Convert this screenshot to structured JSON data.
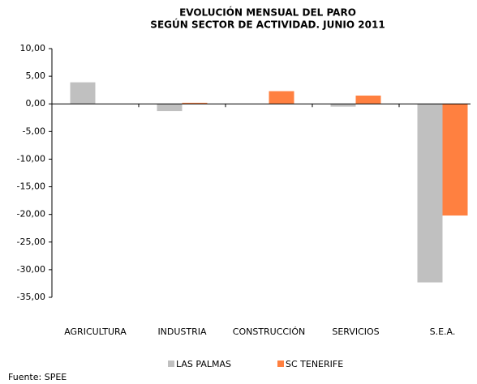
{
  "chart_data": {
    "type": "bar",
    "title": [
      "EVOLUCIÓN MENSUAL DEL PARO",
      "SEGÚN SECTOR DE ACTIVIDAD. JUNIO 2011"
    ],
    "categories": [
      "AGRICULTURA",
      "INDUSTRIA",
      "CONSTRUCCIÓN",
      "SERVICIOS",
      "S.E.A."
    ],
    "series": [
      {
        "name": "LAS PALMAS",
        "color": "#c0c0c0",
        "values": [
          3.9,
          -1.3,
          0,
          -0.5,
          -32.3
        ]
      },
      {
        "name": "SC TENERIFE",
        "color": "#ff8040",
        "values": [
          0,
          0.2,
          2.3,
          1.5,
          -20.2
        ]
      }
    ],
    "ylim": [
      -35,
      10
    ],
    "yticks": [
      {
        "value": 10,
        "label": "10,00"
      },
      {
        "value": 5,
        "label": "5,00"
      },
      {
        "value": 0,
        "label": "0,00"
      },
      {
        "value": -5,
        "label": "-5,00"
      },
      {
        "value": -10,
        "label": "-10,00"
      },
      {
        "value": -15,
        "label": "-15,00"
      },
      {
        "value": -20,
        "label": "-20,00"
      },
      {
        "value": -25,
        "label": "-25,00"
      },
      {
        "value": -30,
        "label": "-30,00"
      },
      {
        "value": -35,
        "label": "-35,00"
      }
    ],
    "legend": "bottom",
    "source": "Fuente: SPEE"
  }
}
